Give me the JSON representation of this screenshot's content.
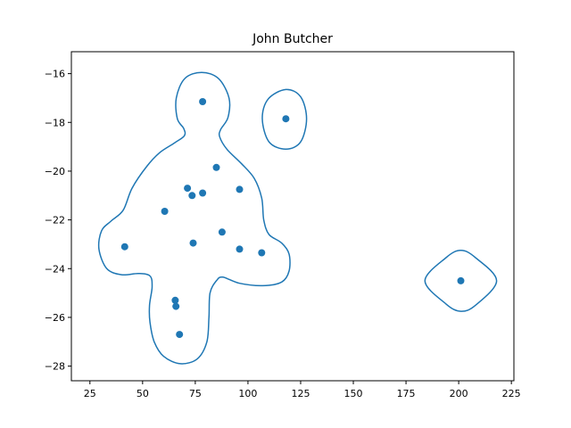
{
  "chart_data": {
    "type": "scatter",
    "title": "John Butcher",
    "xlabel": "",
    "ylabel": "",
    "xlim": [
      16.2,
      226.2
    ],
    "ylim": [
      -28.6,
      -15.1
    ],
    "x_ticks": [
      25,
      50,
      75,
      100,
      125,
      150,
      175,
      200,
      225
    ],
    "y_ticks": [
      -16,
      -18,
      -20,
      -22,
      -24,
      -26,
      -28
    ],
    "grid": false,
    "colors": {
      "marker": "#1f77b4",
      "contour": "#1f77b4"
    },
    "points": [
      {
        "x": 78.5,
        "y": -17.15
      },
      {
        "x": 118.0,
        "y": -17.85
      },
      {
        "x": 85.0,
        "y": -19.85
      },
      {
        "x": 71.3,
        "y": -20.7
      },
      {
        "x": 73.5,
        "y": -21.0
      },
      {
        "x": 78.5,
        "y": -20.9
      },
      {
        "x": 96.0,
        "y": -20.75
      },
      {
        "x": 60.5,
        "y": -21.65
      },
      {
        "x": 87.7,
        "y": -22.5
      },
      {
        "x": 41.5,
        "y": -23.1
      },
      {
        "x": 74.0,
        "y": -22.95
      },
      {
        "x": 96.0,
        "y": -23.2
      },
      {
        "x": 106.5,
        "y": -23.35
      },
      {
        "x": 201.0,
        "y": -24.5
      },
      {
        "x": 65.5,
        "y": -25.3
      },
      {
        "x": 65.8,
        "y": -25.55
      },
      {
        "x": 67.5,
        "y": -26.7
      }
    ],
    "contours": [
      [
        [
          78,
          -15.95
        ],
        [
          86,
          -16.2
        ],
        [
          91,
          -17.0
        ],
        [
          90.5,
          -17.8
        ],
        [
          87,
          -18.3
        ],
        [
          86.6,
          -18.6
        ],
        [
          90,
          -19.1
        ],
        [
          97,
          -19.7
        ],
        [
          103,
          -20.3
        ],
        [
          106.5,
          -21.1
        ],
        [
          107.5,
          -22.0
        ],
        [
          110,
          -22.6
        ],
        [
          116,
          -22.95
        ],
        [
          119.5,
          -23.4
        ],
        [
          119.5,
          -24.1
        ],
        [
          116,
          -24.55
        ],
        [
          107,
          -24.7
        ],
        [
          96,
          -24.6
        ],
        [
          88,
          -24.35
        ],
        [
          85,
          -24.5
        ],
        [
          82,
          -25.0
        ],
        [
          81.5,
          -26.0
        ],
        [
          80.5,
          -27.0
        ],
        [
          76,
          -27.7
        ],
        [
          68,
          -27.9
        ],
        [
          60,
          -27.6
        ],
        [
          55.5,
          -27.0
        ],
        [
          53.5,
          -26.2
        ],
        [
          53.3,
          -25.5
        ],
        [
          54.5,
          -24.75
        ],
        [
          53.5,
          -24.3
        ],
        [
          48,
          -24.2
        ],
        [
          40,
          -24.25
        ],
        [
          33,
          -24.0
        ],
        [
          29.3,
          -23.2
        ],
        [
          30.5,
          -22.45
        ],
        [
          35,
          -22.05
        ],
        [
          40.8,
          -21.6
        ],
        [
          45,
          -20.7
        ],
        [
          52,
          -19.8
        ],
        [
          58,
          -19.25
        ],
        [
          65,
          -18.85
        ],
        [
          69.8,
          -18.55
        ],
        [
          69.5,
          -18.25
        ],
        [
          66.5,
          -17.85
        ],
        [
          66.0,
          -17.0
        ],
        [
          70,
          -16.2
        ]
      ],
      [
        [
          118,
          -16.65
        ],
        [
          125,
          -16.95
        ],
        [
          127.8,
          -17.85
        ],
        [
          125,
          -18.8
        ],
        [
          118,
          -19.1
        ],
        [
          110,
          -18.8
        ],
        [
          106.8,
          -17.85
        ],
        [
          109.5,
          -17.05
        ]
      ],
      [
        [
          201,
          -23.25
        ],
        [
          208,
          -23.55
        ],
        [
          218,
          -24.5
        ],
        [
          208,
          -25.5
        ],
        [
          201,
          -25.75
        ],
        [
          194,
          -25.45
        ],
        [
          184,
          -24.5
        ],
        [
          194,
          -23.55
        ]
      ]
    ]
  }
}
